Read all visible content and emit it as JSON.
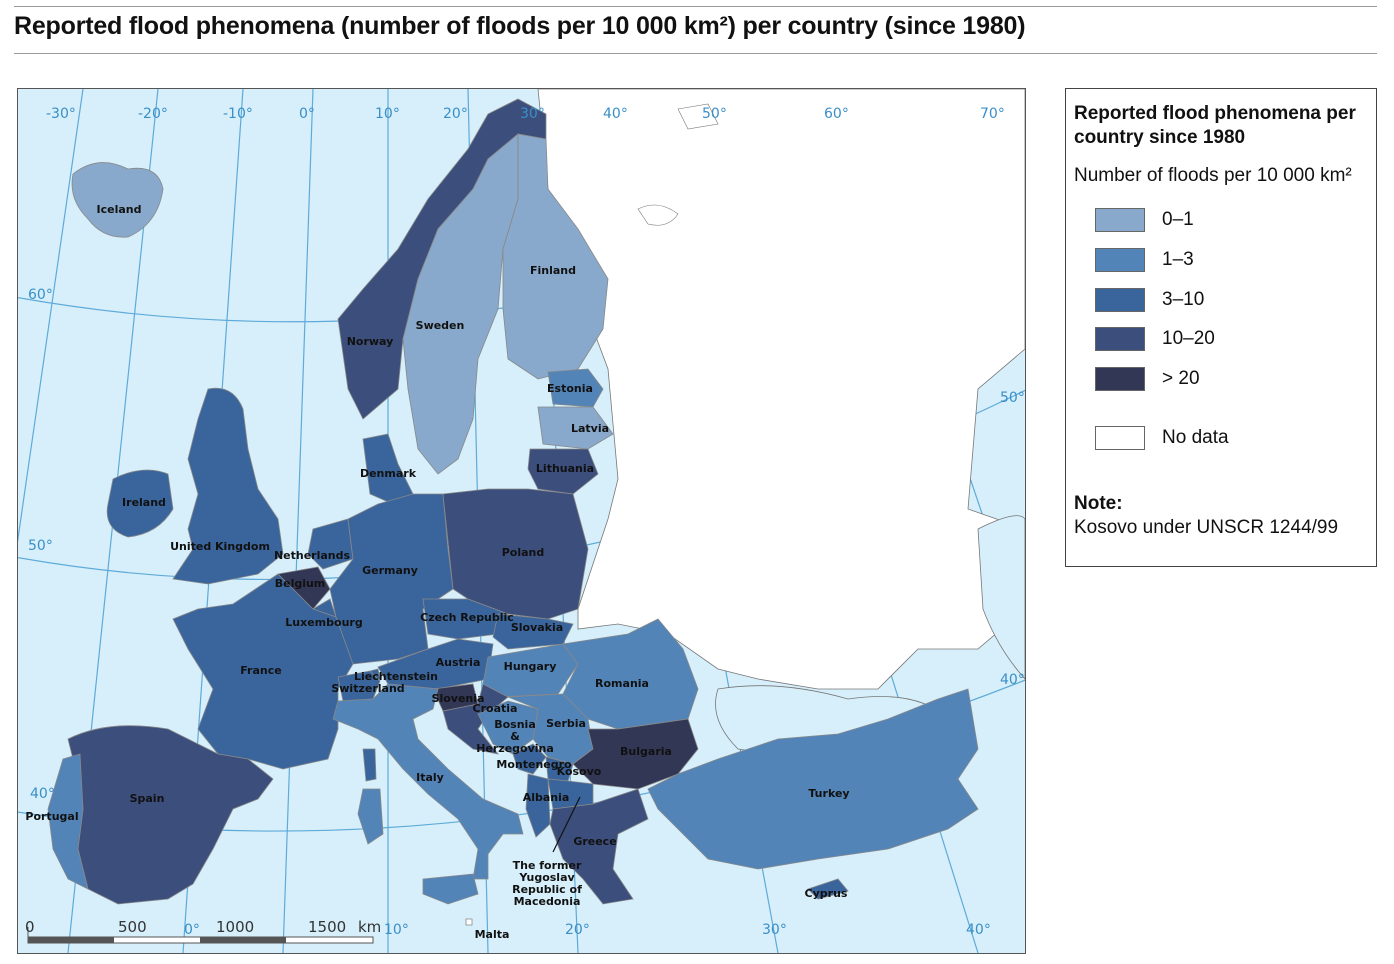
{
  "title": "Reported flood phenomena (number of floods per 10 000 km²) per country (since 1980)",
  "legend": {
    "title": "Reported flood phenomena per country since 1980",
    "subtitle": "Number of floods per 10 000 km²",
    "classes": [
      {
        "label": "0–1",
        "color": "#88a9cb"
      },
      {
        "label": "1–3",
        "color": "#5384b8"
      },
      {
        "label": "3–10",
        "color": "#3a659c"
      },
      {
        "label": "10–20",
        "color": "#3c4e7c"
      },
      {
        "label": "> 20",
        "color": "#323756"
      },
      {
        "label": "No data",
        "color": "#ffffff"
      }
    ],
    "note_title": "Note:",
    "note_text": "Kosovo under UNSCR 1244/99"
  },
  "map": {
    "sea_color": "#d6effa",
    "graticule_color": "#4a9fd4",
    "graticule_labels": {
      "top": [
        "-30°",
        "-20°",
        "-10°",
        "0°",
        "10°",
        "20°",
        "30°",
        "40°",
        "50°",
        "60°",
        "70°"
      ],
      "left": [
        "60°",
        "50°",
        "40°"
      ],
      "right": [
        "50°",
        "40°"
      ],
      "bottom": [
        "0°",
        "10°",
        "20°",
        "30°",
        "40°"
      ]
    },
    "scale_bar": {
      "labels": [
        "0",
        "500",
        "1000",
        "1500"
      ],
      "unit": "km"
    },
    "countries": [
      {
        "name": "Iceland",
        "class": "0–1"
      },
      {
        "name": "Norway",
        "class": "10–20"
      },
      {
        "name": "Sweden",
        "class": "0–1"
      },
      {
        "name": "Finland",
        "class": "0–1"
      },
      {
        "name": "Estonia",
        "class": "1–3"
      },
      {
        "name": "Latvia",
        "class": "0–1"
      },
      {
        "name": "Lithuania",
        "class": "10–20"
      },
      {
        "name": "Denmark",
        "class": "3–10"
      },
      {
        "name": "Ireland",
        "class": "3–10"
      },
      {
        "name": "United Kingdom",
        "class": "3–10"
      },
      {
        "name": "Netherlands",
        "class": "3–10"
      },
      {
        "name": "Belgium",
        "class": "> 20"
      },
      {
        "name": "Luxembourg",
        "class": "3–10"
      },
      {
        "name": "Germany",
        "class": "3–10"
      },
      {
        "name": "Poland",
        "class": "10–20"
      },
      {
        "name": "Czech Republic",
        "class": "3–10"
      },
      {
        "name": "Slovakia",
        "class": "3–10"
      },
      {
        "name": "France",
        "class": "3–10"
      },
      {
        "name": "Liechtenstein",
        "class": "3–10"
      },
      {
        "name": "Switzerland",
        "class": "3–10"
      },
      {
        "name": "Austria",
        "class": "3–10"
      },
      {
        "name": "Hungary",
        "class": "1–3"
      },
      {
        "name": "Romania",
        "class": "1–3"
      },
      {
        "name": "Slovenia",
        "class": "> 20"
      },
      {
        "name": "Croatia",
        "class": "10–20"
      },
      {
        "name": "Bosnia & Herzegovina",
        "class": "1–3"
      },
      {
        "name": "Serbia",
        "class": "1–3"
      },
      {
        "name": "Montenegro",
        "class": "3–10"
      },
      {
        "name": "Kosovo",
        "class": "3–10"
      },
      {
        "name": "Albania",
        "class": "3–10"
      },
      {
        "name": "The former Yugoslav Republic of Macedonia",
        "class": "3–10"
      },
      {
        "name": "Bulgaria",
        "class": "> 20"
      },
      {
        "name": "Greece",
        "class": "10–20"
      },
      {
        "name": "Italy",
        "class": "1–3"
      },
      {
        "name": "Malta",
        "class": "No data"
      },
      {
        "name": "Spain",
        "class": "10–20"
      },
      {
        "name": "Portugal",
        "class": "1–3"
      },
      {
        "name": "Turkey",
        "class": "1–3"
      },
      {
        "name": "Cyprus",
        "class": "3–10"
      }
    ]
  }
}
